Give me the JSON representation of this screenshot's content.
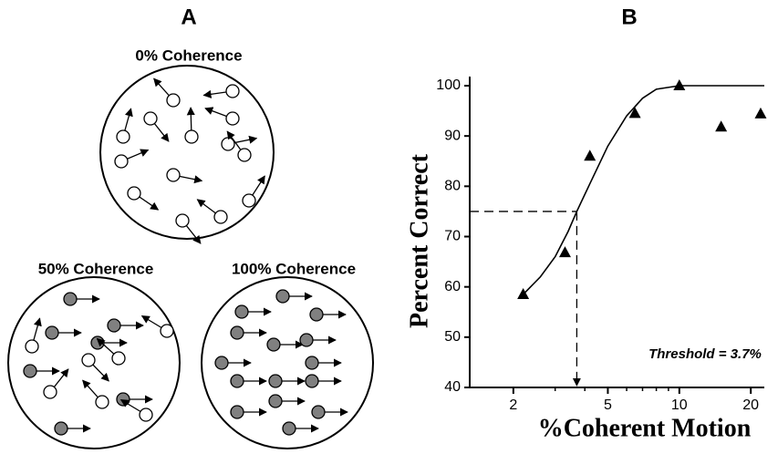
{
  "panel_a": {
    "label": "A",
    "circles": [
      {
        "title": "0% Coherence"
      },
      {
        "title": "50% Coherence"
      },
      {
        "title": "100% Coherence"
      }
    ]
  },
  "chart_data": {
    "type": "scatter",
    "label": "B",
    "xlabel": "%Coherent Motion",
    "ylabel": "Percent Correct",
    "annotation": "Threshold = 3.7%",
    "xscale": "log",
    "xlim": [
      1.31,
      22.8
    ],
    "xticks": [
      2,
      5,
      10,
      20
    ],
    "xminor": [
      3,
      4,
      6,
      7,
      8,
      9
    ],
    "ylim": [
      40,
      100
    ],
    "yticks": [
      40,
      50,
      60,
      70,
      80,
      90,
      100
    ],
    "points": {
      "x": [
        2.2,
        3.3,
        4.2,
        6.5,
        10,
        15,
        22
      ],
      "y": [
        58.5,
        66.8,
        86,
        94.5,
        100,
        91.8,
        94.4
      ]
    },
    "fit": {
      "x": [
        2.2,
        2.6,
        3,
        3.4,
        3.7,
        4.2,
        5,
        6,
        7,
        8,
        10,
        15,
        22.8
      ],
      "y": [
        58.5,
        62,
        66,
        71,
        75,
        80.5,
        88,
        94,
        97.5,
        99.3,
        100,
        100,
        100
      ]
    },
    "threshold": {
      "x": 3.7,
      "y": 75
    },
    "color": "#000000"
  }
}
